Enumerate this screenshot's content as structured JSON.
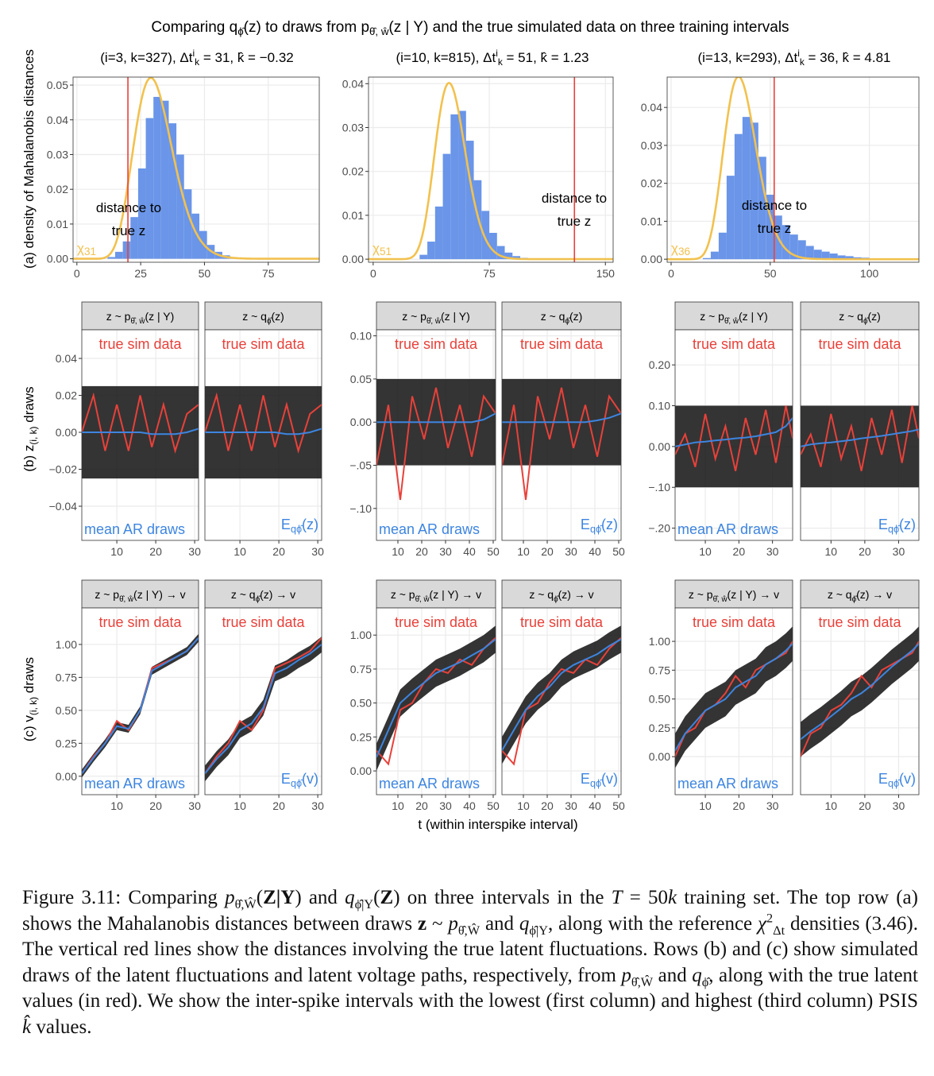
{
  "figure": {
    "title": [
      "Comparing q",
      {
        "sub": "ϕ̂"
      },
      "(z) to draws from p",
      {
        "sub": "θ̂, ŵ"
      },
      "(z | Y) and the true simulated data on three training intervals"
    ],
    "row_labels": [
      [
        "(a) density of Mahalanobis distances"
      ],
      [
        "(b) z",
        {
          "sub": "(i, k)"
        },
        " draws"
      ],
      [
        "(c) v",
        {
          "sub": "(i, k)"
        },
        " draws"
      ]
    ],
    "x_label": "t (within interspike interval)",
    "strips_z": [
      [
        "z ~ p",
        {
          "sub": "θ̂, ŵ"
        },
        "(z | Y)"
      ],
      [
        "z ~ q",
        {
          "sub": "ϕ̂"
        },
        "(z)"
      ]
    ],
    "strips_v": [
      [
        "z ~ p",
        {
          "sub": "θ̂, ŵ"
        },
        "(z | Y) → v"
      ],
      [
        "z ~ q",
        {
          "sub": "ϕ̂"
        },
        "(z) → v"
      ]
    ],
    "true_label": "true sim data",
    "mean_label": "mean AR draws",
    "e_label_z": [
      "E",
      {
        "sub": "qϕ̂"
      },
      "(z)"
    ],
    "e_label_v": [
      "E",
      {
        "sub": "qϕ̂"
      },
      "(v)"
    ],
    "distance_label": [
      "distance to",
      "true z"
    ],
    "chi_symbol": "χ",
    "colors": {
      "bars": "#6a95e8",
      "chi": "#f2c14e",
      "truth": "#e8413a",
      "mean": "#3d85e0",
      "draws": "#111111"
    },
    "columns": [
      {
        "subtitle": [
          "(i=3, k=327), Δt",
          {
            "sup": "i"
          },
          {
            "sub": "k"
          },
          " = 31, k̂ = −0.32"
        ],
        "hist": {
          "xlim": [
            -1.5,
            95
          ],
          "ylim": [
            -0.001,
            0.0523
          ],
          "xticks": [
            0,
            25,
            50,
            75
          ],
          "yticks": [
            {
              "value": 0,
              "label": "0.00"
            },
            0.01,
            0.02,
            0.03,
            0.04,
            0.05
          ],
          "bins": [
            12,
            15,
            18,
            21,
            24,
            27,
            30,
            33,
            36,
            39,
            42,
            45,
            48,
            51,
            54,
            57,
            60,
            63
          ],
          "density": [
            0.0005,
            0.002,
            0.005,
            0.012,
            0.026,
            0.0405,
            0.0466,
            0.0455,
            0.039,
            0.03,
            0.02,
            0.013,
            0.008,
            0.004,
            0.002,
            0.001,
            0.0004
          ],
          "df": 31,
          "true_distance": 20
        },
        "z": {
          "xlim": [
            1,
            31
          ],
          "ylim": [
            -0.0585,
            0.0555
          ],
          "xticks": [
            10,
            20,
            30
          ],
          "yticks": [
            0.04,
            0.02,
            {
              "value": 0,
              "label": "0.00"
            },
            {
              "value": -0.02,
              "label": "−0.02"
            },
            {
              "value": -0.04,
              "label": "−0.04"
            }
          ],
          "t": [
            1,
            4,
            7,
            10,
            13,
            16,
            19,
            22,
            25,
            28,
            31
          ],
          "truth": [
            0,
            0.02,
            -0.01,
            0.015,
            -0.01,
            0.02,
            -0.008,
            0.015,
            -0.01,
            0.01,
            0.015
          ],
          "mean": [
            [
              0,
              0,
              0,
              0,
              0,
              0,
              -0.001,
              -0.001,
              -0.001,
              0,
              0.002
            ],
            [
              0,
              0,
              0,
              0,
              0,
              0,
              0,
              -0.001,
              -0.001,
              0,
              0.002
            ]
          ],
          "draws_range": [
            -0.025,
            0.025
          ]
        },
        "v": {
          "xlim": [
            1,
            31
          ],
          "ylim": [
            -0.14,
            1.277
          ],
          "xticks": [
            10,
            20,
            30
          ],
          "yticks": [
            {
              "value": 0,
              "label": "0.00"
            },
            0.25,
            {
              "value": 0.5,
              "label": "0.50"
            },
            0.75,
            {
              "value": 1,
              "label": "1.00"
            }
          ],
          "t": [
            1,
            4,
            7,
            10,
            13,
            16,
            19,
            22,
            25,
            28,
            31
          ],
          "truth": [
            0.02,
            0.15,
            0.25,
            0.42,
            0.35,
            0.5,
            0.82,
            0.86,
            0.9,
            0.95,
            1.05
          ],
          "mean": [
            [
              0.02,
              0.14,
              0.25,
              0.38,
              0.36,
              0.5,
              0.8,
              0.85,
              0.9,
              0.95,
              1.05
            ],
            [
              0.02,
              0.13,
              0.22,
              0.35,
              0.4,
              0.52,
              0.78,
              0.82,
              0.88,
              0.93,
              1
            ]
          ],
          "draws_halfwidth": [
            0.03,
            0.06
          ]
        }
      },
      {
        "subtitle": [
          "(i=10, k=815), Δt",
          {
            "sup": "i"
          },
          {
            "sub": "k"
          },
          " = 51, k̂ = 1.23"
        ],
        "hist": {
          "xlim": [
            -3,
            155
          ],
          "ylim": [
            -0.0007,
            0.0415
          ],
          "xticks": [
            0,
            75,
            150
          ],
          "yticks": [
            {
              "value": 0,
              "label": "0.00"
            },
            0.01,
            0.02,
            0.03,
            0.04
          ],
          "bins": [
            30,
            35,
            40,
            45,
            50,
            55,
            60,
            65,
            70,
            75,
            80,
            85,
            90,
            95,
            100
          ],
          "density": [
            0.001,
            0.004,
            0.012,
            0.024,
            0.033,
            0.0338,
            0.027,
            0.018,
            0.011,
            0.006,
            0.003,
            0.0015,
            0.0007,
            0.0003
          ],
          "df": 51,
          "true_distance": 130
        },
        "z": {
          "xlim": [
            1,
            51
          ],
          "ylim": [
            -0.137,
            0.107
          ],
          "xticks": [
            10,
            20,
            30,
            40,
            50
          ],
          "yticks": [
            {
              "value": 0.1,
              "label": "0.10"
            },
            0.05,
            {
              "value": 0,
              "label": "0.00"
            },
            {
              "value": -0.05,
              "label": "−.05"
            },
            {
              "value": -0.1,
              "label": "−.10"
            }
          ],
          "t": [
            1,
            6,
            11,
            16,
            21,
            26,
            31,
            36,
            41,
            46,
            51
          ],
          "truth": [
            -0.05,
            0.02,
            -0.09,
            0.03,
            -0.02,
            0.04,
            -0.03,
            0.02,
            -0.04,
            0.03,
            0.01
          ],
          "mean": [
            [
              0,
              0,
              0,
              0,
              0,
              0,
              0,
              0,
              0,
              0.003,
              0.01
            ],
            [
              0,
              0,
              0,
              0,
              0,
              0,
              0,
              0,
              0.002,
              0.005,
              0.01
            ]
          ],
          "draws_range": [
            -0.05,
            0.05
          ]
        },
        "v": {
          "xlim": [
            1,
            51
          ],
          "ylim": [
            -0.175,
            1.2
          ],
          "xticks": [
            10,
            20,
            30,
            40,
            50
          ],
          "yticks": [
            {
              "value": 0,
              "label": "0.00"
            },
            0.25,
            {
              "value": 0.5,
              "label": "0.50"
            },
            0.75,
            {
              "value": 1,
              "label": "1.00"
            }
          ],
          "t": [
            1,
            6,
            11,
            16,
            21,
            26,
            31,
            36,
            41,
            46,
            51
          ],
          "truth": [
            0.15,
            0.05,
            0.45,
            0.5,
            0.65,
            0.75,
            0.72,
            0.82,
            0.78,
            0.9,
            0.98
          ],
          "mean": [
            [
              0.1,
              0.3,
              0.5,
              0.58,
              0.65,
              0.72,
              0.76,
              0.8,
              0.85,
              0.9,
              0.97
            ],
            [
              0.15,
              0.3,
              0.45,
              0.55,
              0.62,
              0.72,
              0.78,
              0.82,
              0.86,
              0.92,
              0.97
            ]
          ],
          "draws_halfwidth": [
            0.1,
            0.1
          ]
        }
      },
      {
        "subtitle": [
          "(i=13, k=293), Δt",
          {
            "sup": "i"
          },
          {
            "sub": "k"
          },
          " = 36, k̂ = 4.81"
        ],
        "hist": {
          "xlim": [
            -2,
            125
          ],
          "ylim": [
            -0.0008,
            0.048
          ],
          "xticks": [
            0,
            50,
            100
          ],
          "yticks": [
            {
              "value": 0,
              "label": "0.00"
            },
            0.01,
            0.02,
            0.03,
            0.04
          ],
          "bins": [
            16,
            20,
            24,
            28,
            32,
            36,
            40,
            44,
            48,
            52,
            56,
            60,
            64,
            68,
            72,
            76,
            80,
            84,
            88,
            92,
            96,
            100,
            104,
            108
          ],
          "density": [
            0.0003,
            0.002,
            0.007,
            0.022,
            0.033,
            0.0375,
            0.036,
            0.027,
            0.017,
            0.0115,
            0.009,
            0.0065,
            0.005,
            0.0035,
            0.0025,
            0.002,
            0.0015,
            0.001,
            0.0008,
            0.0005,
            0.0004,
            0.0002,
            0.0001
          ],
          "df": 36,
          "true_distance": 52
        },
        "z": {
          "xlim": [
            1,
            36
          ],
          "ylim": [
            -0.23,
            0.286
          ],
          "xticks": [
            10,
            20,
            30
          ],
          "yticks": [
            {
              "value": 0.2,
              "label": "0.20"
            },
            {
              "value": 0.1,
              "label": "0.10"
            },
            {
              "value": 0,
              "label": "0.00"
            },
            {
              "value": -0.1,
              "label": "−.10"
            },
            {
              "value": -0.2,
              "label": "−.20"
            }
          ],
          "t": [
            1,
            4,
            7,
            10,
            13,
            16,
            19,
            22,
            25,
            28,
            31,
            34,
            36
          ],
          "truth": [
            -0.02,
            0.03,
            -0.05,
            0.08,
            -0.03,
            0.05,
            -0.06,
            0.07,
            -0.02,
            0.09,
            -0.04,
            0.1,
            0.02
          ],
          "mean": [
            [
              0,
              0.005,
              0.01,
              0.012,
              0.015,
              0.017,
              0.02,
              0.022,
              0.025,
              0.03,
              0.035,
              0.05,
              0.07
            ],
            [
              0,
              0.005,
              0.008,
              0.01,
              0.013,
              0.016,
              0.02,
              0.023,
              0.026,
              0.03,
              0.034,
              0.038,
              0.042
            ]
          ],
          "draws_range": [
            -0.1,
            0.1
          ]
        },
        "v": {
          "xlim": [
            1,
            36
          ],
          "ylim": [
            -0.33,
            1.29
          ],
          "xticks": [
            10,
            20,
            30
          ],
          "yticks": [
            {
              "value": 0,
              "label": "0.00"
            },
            0.25,
            {
              "value": 0.5,
              "label": "0.50"
            },
            0.75,
            {
              "value": 1,
              "label": "1.00"
            }
          ],
          "t": [
            1,
            4,
            7,
            10,
            13,
            16,
            19,
            22,
            25,
            28,
            31,
            34,
            36
          ],
          "truth": [
            0,
            0.2,
            0.25,
            0.4,
            0.45,
            0.55,
            0.7,
            0.6,
            0.75,
            0.8,
            0.85,
            0.9,
            1
          ],
          "mean": [
            [
              0.05,
              0.2,
              0.3,
              0.4,
              0.45,
              0.5,
              0.6,
              0.65,
              0.7,
              0.8,
              0.85,
              0.92,
              0.98
            ],
            [
              0.15,
              0.22,
              0.28,
              0.35,
              0.42,
              0.5,
              0.55,
              0.62,
              0.7,
              0.78,
              0.85,
              0.92,
              0.98
            ]
          ],
          "draws_halfwidth": [
            0.15,
            0.15
          ]
        }
      }
    ],
    "caption": [
      "Figure 3.11: Comparing ",
      {
        "i": "p"
      },
      {
        "sub": "θ̂,Ŵ"
      },
      "(",
      {
        "b": "Z|Y"
      },
      ") and ",
      {
        "i": "q"
      },
      {
        "sub": "ϕ̂|Y"
      },
      "(",
      {
        "b": "Z"
      },
      ") on three intervals in the ",
      {
        "i": "T"
      },
      " = 50",
      {
        "i": "k"
      },
      " training set. The top row (a) shows the Mahalanobis distances between draws ",
      {
        "b": "z"
      },
      " ~ ",
      {
        "i": "p"
      },
      {
        "sub": "θ̂,Ŵ"
      },
      " and ",
      {
        "i": "q"
      },
      {
        "sub": "ϕ̂|Y"
      },
      ", along with the reference ",
      {
        "i": "χ"
      },
      {
        "sup": "2"
      },
      {
        "sub": "Δt"
      },
      " densities (3.46). The vertical red lines show the distances involving the true latent fluctuations. Rows (b) and (c) show simulated draws of the latent fluctuations and latent voltage paths, respectively, from ",
      {
        "i": "p"
      },
      {
        "sub": "θ̂,Ŵ"
      },
      " and ",
      {
        "i": "q"
      },
      {
        "sub": "ϕ̂"
      },
      ", along with the true latent values (in red).  We show the inter-spike intervals with the lowest (first column) and highest (third column) PSIS ",
      {
        "i": "k̂"
      },
      " values."
    ]
  }
}
